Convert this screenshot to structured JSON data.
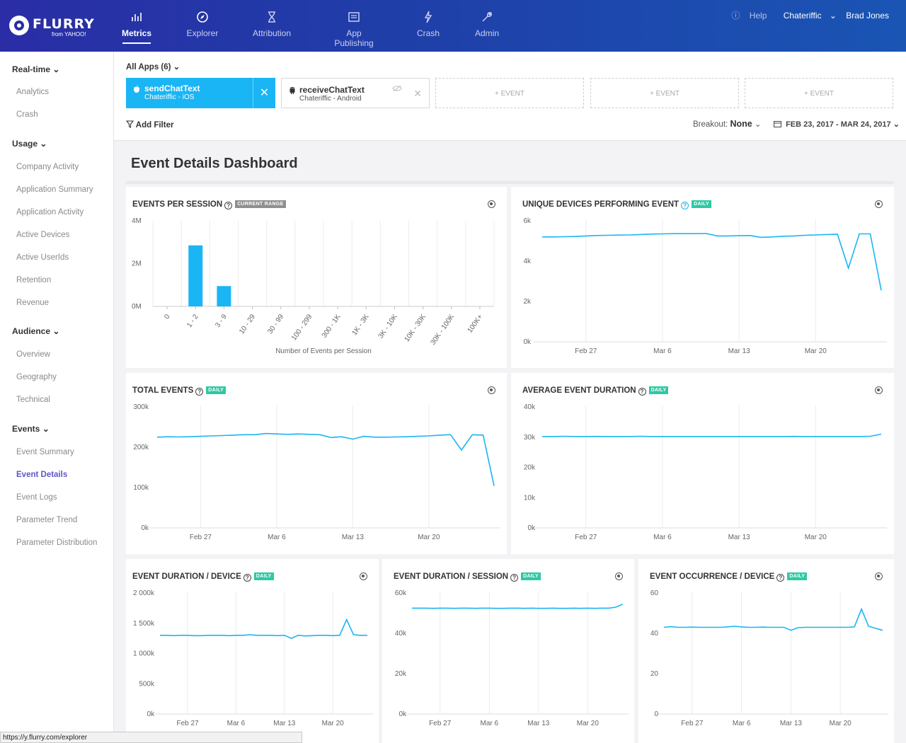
{
  "brand": {
    "name": "FLURRY",
    "sub": "from YAHOO!"
  },
  "nav": [
    {
      "label": "Metrics",
      "icon": "bar-chart-icon"
    },
    {
      "label": "Explorer",
      "icon": "compass-icon"
    },
    {
      "label": "Attribution",
      "icon": "hourglass-icon"
    },
    {
      "label": "App Publishing",
      "icon": "publish-icon"
    },
    {
      "label": "Crash",
      "icon": "lightning-icon"
    },
    {
      "label": "Admin",
      "icon": "wrench-icon"
    }
  ],
  "userbar": {
    "help": "Help",
    "app": "Chateriffic",
    "user": "Brad Jones"
  },
  "sidebar": {
    "realtime": {
      "label": "Real-time",
      "items": [
        "Analytics",
        "Crash"
      ]
    },
    "usage": {
      "label": "Usage",
      "items": [
        "Company Activity",
        "Application Summary",
        "Application Activity",
        "Active Devices",
        "Active UserIds",
        "Retention",
        "Revenue"
      ]
    },
    "audience": {
      "label": "Audience",
      "items": [
        "Overview",
        "Geography",
        "Technical"
      ]
    },
    "events": {
      "label": "Events",
      "items": [
        "Event Summary",
        "Event Details",
        "Event Logs",
        "Parameter Trend",
        "Parameter Distribution"
      ]
    }
  },
  "filters": {
    "all_apps": "All Apps (6)",
    "chip1": {
      "name": "sendChatText",
      "sub": "Chateriffic - iOS"
    },
    "chip2": {
      "name": "receiveChatText",
      "sub": "Chateriffic - Android"
    },
    "add_event": "+ EVENT",
    "add_filter": "Add Filter",
    "breakout_label": "Breakout:",
    "breakout_value": "None",
    "date_range": "FEB 23, 2017 - MAR 24, 2017"
  },
  "page_title": "Event Details Dashboard",
  "panels": {
    "eps": {
      "title": "EVENTS PER SESSION",
      "badge": "CURRENT RANGE"
    },
    "udpe": {
      "title": "UNIQUE DEVICES PERFORMING EVENT",
      "badge": "DAILY"
    },
    "te": {
      "title": "TOTAL EVENTS",
      "badge": "DAILY"
    },
    "aed": {
      "title": "AVERAGE EVENT DURATION",
      "badge": "DAILY"
    },
    "edd": {
      "title": "EVENT DURATION / DEVICE",
      "badge": "DAILY"
    },
    "eds": {
      "title": "EVENT DURATION / SESSION",
      "badge": "DAILY"
    },
    "eod": {
      "title": "EVENT OCCURRENCE / DEVICE",
      "badge": "DAILY"
    }
  },
  "url": "https://y.flurry.com/explorer",
  "chart_data": [
    {
      "id": "eps",
      "type": "bar",
      "categories": [
        "0",
        "1 - 2",
        "3 - 9",
        "10 - 29",
        "30 - 99",
        "100 - 299",
        "300 - 1K",
        "1K - 3K",
        "3K - 10K",
        "10K - 30K",
        "30K - 100K",
        "100K+"
      ],
      "values": [
        0,
        2.85,
        0.95,
        0,
        0,
        0,
        0,
        0,
        0,
        0,
        0,
        0
      ],
      "ylim": [
        0,
        4
      ],
      "yticks": [
        "0M",
        "2M",
        "4M"
      ],
      "xlabel": "Number of Events per Session",
      "color": "#1ab5f4"
    },
    {
      "id": "udpe",
      "type": "line",
      "xticks": [
        "Feb 27",
        "Mar 6",
        "Mar 13",
        "Mar 20"
      ],
      "tick_days": [
        4,
        11,
        18,
        25
      ],
      "ylim": [
        0,
        6000
      ],
      "yticks": [
        "0k",
        "2k",
        "4k",
        "6k"
      ],
      "values": [
        5200,
        5200,
        5210,
        5220,
        5250,
        5270,
        5280,
        5290,
        5300,
        5320,
        5340,
        5350,
        5360,
        5360,
        5360,
        5370,
        5250,
        5250,
        5260,
        5270,
        5180,
        5200,
        5230,
        5250,
        5280,
        5300,
        5320,
        5330,
        3650,
        5350,
        5350,
        2550
      ],
      "color": "#1ab5f4"
    },
    {
      "id": "te",
      "type": "line",
      "xticks": [
        "Feb 27",
        "Mar 6",
        "Mar 13",
        "Mar 20"
      ],
      "tick_days": [
        4,
        11,
        18,
        25
      ],
      "ylim": [
        0,
        300000
      ],
      "yticks": [
        "0k",
        "100k",
        "200k",
        "300k"
      ],
      "values": [
        225000,
        226000,
        225500,
        226000,
        227000,
        228000,
        229000,
        230000,
        231000,
        231000,
        234000,
        233000,
        232000,
        233000,
        232000,
        231000,
        224000,
        226000,
        220000,
        227000,
        225000,
        225000,
        225500,
        226000,
        227000,
        228000,
        230000,
        231000,
        193000,
        231000,
        230000,
        104000
      ],
      "color": "#1ab5f4"
    },
    {
      "id": "aed",
      "type": "line",
      "xticks": [
        "Feb 27",
        "Mar 6",
        "Mar 13",
        "Mar 20"
      ],
      "tick_days": [
        4,
        11,
        18,
        25
      ],
      "ylim": [
        0,
        40000
      ],
      "yticks": [
        "0k",
        "10k",
        "20k",
        "30k",
        "40k"
      ],
      "values": [
        30200,
        30200,
        30300,
        30200,
        30200,
        30250,
        30200,
        30200,
        30200,
        30300,
        30200,
        30200,
        30200,
        30200,
        30200,
        30200,
        30200,
        30200,
        30200,
        30200,
        30200,
        30200,
        30200,
        30250,
        30200,
        30200,
        30200,
        30200,
        30200,
        30200,
        30300,
        31000
      ],
      "color": "#1ab5f4"
    },
    {
      "id": "edd",
      "type": "line",
      "xticks": [
        "Feb 27",
        "Mar 6",
        "Mar 13",
        "Mar 20"
      ],
      "tick_days": [
        4,
        11,
        18,
        25
      ],
      "ylim": [
        0,
        2000
      ],
      "yticks": [
        "0k",
        "500k",
        "1 000k",
        "1 500k",
        "2 000k"
      ],
      "values": [
        1300,
        1300,
        1295,
        1300,
        1300,
        1295,
        1295,
        1300,
        1300,
        1300,
        1295,
        1300,
        1300,
        1310,
        1300,
        1300,
        1300,
        1295,
        1300,
        1250,
        1300,
        1290,
        1295,
        1300,
        1300,
        1295,
        1300,
        1560,
        1310,
        1300,
        1300
      ],
      "color": "#1ab5f4"
    },
    {
      "id": "eds",
      "type": "line",
      "xticks": [
        "Feb 27",
        "Mar 6",
        "Mar 13",
        "Mar 20"
      ],
      "tick_days": [
        4,
        11,
        18,
        25
      ],
      "ylim": [
        0,
        60000
      ],
      "yticks": [
        "0k",
        "20k",
        "40k",
        "60k"
      ],
      "values": [
        52500,
        52500,
        52500,
        52400,
        52500,
        52500,
        52400,
        52500,
        52500,
        52400,
        52500,
        52500,
        52400,
        52400,
        52500,
        52500,
        52400,
        52500,
        52400,
        52400,
        52500,
        52400,
        52400,
        52500,
        52400,
        52500,
        52400,
        52500,
        52500,
        53000,
        54500
      ],
      "color": "#1ab5f4"
    },
    {
      "id": "eod",
      "type": "line",
      "xticks": [
        "Feb 27",
        "Mar 6",
        "Mar 13",
        "Mar 20"
      ],
      "tick_days": [
        4,
        11,
        18,
        25
      ],
      "ylim": [
        0,
        60
      ],
      "yticks": [
        "0",
        "20",
        "40",
        "60"
      ],
      "values": [
        43,
        43.3,
        43,
        43,
        43.1,
        43,
        43,
        43,
        43,
        43.2,
        43.5,
        43.2,
        43,
        43,
        43.1,
        43,
        43,
        43,
        41.5,
        42.8,
        43,
        43,
        43,
        43,
        43,
        43,
        43,
        43.2,
        52,
        43.5,
        42.5,
        41.5
      ],
      "color": "#1ab5f4"
    }
  ]
}
